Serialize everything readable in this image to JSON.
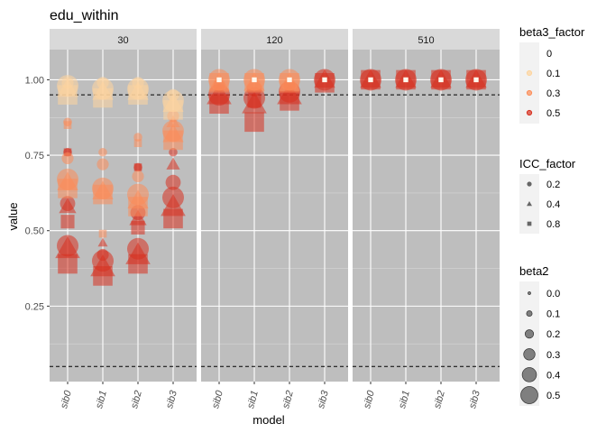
{
  "chart_data": {
    "type": "scatter",
    "title": "edu_within",
    "xlabel": "model",
    "ylabel": "value",
    "ylim": [
      0.0,
      1.1
    ],
    "y_ticks": [
      0.25,
      0.5,
      0.75,
      1.0
    ],
    "y_tick_labels": [
      "0.25",
      "0.50",
      "0.75",
      "1.00"
    ],
    "reference_lines": [
      0.05,
      0.95
    ],
    "panel_background": "#bebebe",
    "strip_background": "#d9d9d9",
    "grid": true,
    "categories": [
      "sib0",
      "sib1",
      "sib2",
      "sib3"
    ],
    "facets": [
      "30",
      "120",
      "510"
    ],
    "legend_placement": "right",
    "legends": {
      "color": {
        "title": "beta3_factor",
        "entries": [
          {
            "label": "0",
            "color": "#fff7ec"
          },
          {
            "label": "0.1",
            "color": "#fdd49e"
          },
          {
            "label": "0.3",
            "color": "#fc8d59"
          },
          {
            "label": "0.5",
            "color": "#d7301f"
          }
        ]
      },
      "shape": {
        "title": "ICC_factor",
        "entries": [
          {
            "label": "0.2",
            "shape": "circle"
          },
          {
            "label": "0.4",
            "shape": "triangle"
          },
          {
            "label": "0.8",
            "shape": "square"
          }
        ]
      },
      "size": {
        "title": "beta2",
        "entries": [
          {
            "label": "0.0",
            "size": 0.0
          },
          {
            "label": "0.1",
            "size": 0.1
          },
          {
            "label": "0.2",
            "size": 0.2
          },
          {
            "label": "0.3",
            "size": 0.3
          },
          {
            "label": "0.4",
            "size": 0.4
          },
          {
            "label": "0.5",
            "size": 0.5
          }
        ]
      }
    },
    "series": [
      {
        "facet": "30",
        "model": "sib0",
        "beta3_factor": "0.5",
        "points": [
          {
            "ICC": "0.2",
            "beta2": 0.5,
            "y": 0.45
          },
          {
            "ICC": "0.4",
            "beta2": 0.5,
            "y": 0.44
          },
          {
            "ICC": "0.8",
            "beta2": 0.5,
            "y": 0.39
          },
          {
            "ICC": "0.2",
            "beta2": 0.3,
            "y": 0.59
          },
          {
            "ICC": "0.4",
            "beta2": 0.3,
            "y": 0.58
          },
          {
            "ICC": "0.8",
            "beta2": 0.3,
            "y": 0.53
          },
          {
            "ICC": "0.2",
            "beta2": 0.1,
            "y": 0.76
          },
          {
            "ICC": "0.8",
            "beta2": 0.1,
            "y": 0.76
          }
        ]
      },
      {
        "facet": "30",
        "model": "sib0",
        "beta3_factor": "0.3",
        "points": [
          {
            "ICC": "0.2",
            "beta2": 0.5,
            "y": 0.67
          },
          {
            "ICC": "0.4",
            "beta2": 0.4,
            "y": 0.66
          },
          {
            "ICC": "0.8",
            "beta2": 0.5,
            "y": 0.64
          },
          {
            "ICC": "0.2",
            "beta2": 0.2,
            "y": 0.74
          },
          {
            "ICC": "0.2",
            "beta2": 0.1,
            "y": 0.86
          },
          {
            "ICC": "0.8",
            "beta2": 0.1,
            "y": 0.85
          }
        ]
      },
      {
        "facet": "30",
        "model": "sib0",
        "beta3_factor": "0.1",
        "points": [
          {
            "ICC": "0.2",
            "beta2": 0.5,
            "y": 0.98
          },
          {
            "ICC": "0.4",
            "beta2": 0.4,
            "y": 0.97
          },
          {
            "ICC": "0.8",
            "beta2": 0.5,
            "y": 0.95
          },
          {
            "ICC": "0.2",
            "beta2": 0.2,
            "y": 0.99
          }
        ]
      },
      {
        "facet": "30",
        "model": "sib1",
        "beta3_factor": "0.5",
        "points": [
          {
            "ICC": "0.2",
            "beta2": 0.5,
            "y": 0.4
          },
          {
            "ICC": "0.4",
            "beta2": 0.5,
            "y": 0.38
          },
          {
            "ICC": "0.8",
            "beta2": 0.5,
            "y": 0.35
          },
          {
            "ICC": "0.2",
            "beta2": 0.2,
            "y": 0.42
          },
          {
            "ICC": "0.4",
            "beta2": 0.1,
            "y": 0.46
          }
        ]
      },
      {
        "facet": "30",
        "model": "sib1",
        "beta3_factor": "0.3",
        "points": [
          {
            "ICC": "0.2",
            "beta2": 0.5,
            "y": 0.64
          },
          {
            "ICC": "0.4",
            "beta2": 0.4,
            "y": 0.63
          },
          {
            "ICC": "0.8",
            "beta2": 0.5,
            "y": 0.62
          },
          {
            "ICC": "0.2",
            "beta2": 0.2,
            "y": 0.72
          },
          {
            "ICC": "0.2",
            "beta2": 0.1,
            "y": 0.76
          },
          {
            "ICC": "0.8",
            "beta2": 0.1,
            "y": 0.49
          }
        ]
      },
      {
        "facet": "30",
        "model": "sib1",
        "beta3_factor": "0.1",
        "points": [
          {
            "ICC": "0.2",
            "beta2": 0.5,
            "y": 0.97
          },
          {
            "ICC": "0.4",
            "beta2": 0.4,
            "y": 0.96
          },
          {
            "ICC": "0.8",
            "beta2": 0.5,
            "y": 0.94
          },
          {
            "ICC": "0.2",
            "beta2": 0.2,
            "y": 0.99
          }
        ]
      },
      {
        "facet": "30",
        "model": "sib2",
        "beta3_factor": "0.5",
        "points": [
          {
            "ICC": "0.2",
            "beta2": 0.5,
            "y": 0.44
          },
          {
            "ICC": "0.4",
            "beta2": 0.5,
            "y": 0.42
          },
          {
            "ICC": "0.8",
            "beta2": 0.5,
            "y": 0.39
          },
          {
            "ICC": "0.2",
            "beta2": 0.3,
            "y": 0.56
          },
          {
            "ICC": "0.4",
            "beta2": 0.3,
            "y": 0.54
          },
          {
            "ICC": "0.8",
            "beta2": 0.3,
            "y": 0.51
          },
          {
            "ICC": "0.2",
            "beta2": 0.1,
            "y": 0.71
          },
          {
            "ICC": "0.8",
            "beta2": 0.1,
            "y": 0.71
          }
        ]
      },
      {
        "facet": "30",
        "model": "sib2",
        "beta3_factor": "0.3",
        "points": [
          {
            "ICC": "0.2",
            "beta2": 0.5,
            "y": 0.62
          },
          {
            "ICC": "0.4",
            "beta2": 0.4,
            "y": 0.6
          },
          {
            "ICC": "0.8",
            "beta2": 0.5,
            "y": 0.58
          },
          {
            "ICC": "0.2",
            "beta2": 0.2,
            "y": 0.68
          },
          {
            "ICC": "0.2",
            "beta2": 0.1,
            "y": 0.81
          },
          {
            "ICC": "0.8",
            "beta2": 0.1,
            "y": 0.79
          }
        ]
      },
      {
        "facet": "30",
        "model": "sib2",
        "beta3_factor": "0.1",
        "points": [
          {
            "ICC": "0.2",
            "beta2": 0.5,
            "y": 0.97
          },
          {
            "ICC": "0.4",
            "beta2": 0.4,
            "y": 0.96
          },
          {
            "ICC": "0.8",
            "beta2": 0.5,
            "y": 0.95
          },
          {
            "ICC": "0.2",
            "beta2": 0.2,
            "y": 0.99
          }
        ]
      },
      {
        "facet": "30",
        "model": "sib3",
        "beta3_factor": "0.5",
        "points": [
          {
            "ICC": "0.2",
            "beta2": 0.5,
            "y": 0.61
          },
          {
            "ICC": "0.4",
            "beta2": 0.5,
            "y": 0.58
          },
          {
            "ICC": "0.8",
            "beta2": 0.5,
            "y": 0.54
          },
          {
            "ICC": "0.2",
            "beta2": 0.3,
            "y": 0.66
          },
          {
            "ICC": "0.4",
            "beta2": 0.2,
            "y": 0.72
          },
          {
            "ICC": "0.2",
            "beta2": 0.1,
            "y": 0.76
          }
        ]
      },
      {
        "facet": "30",
        "model": "sib3",
        "beta3_factor": "0.3",
        "points": [
          {
            "ICC": "0.2",
            "beta2": 0.5,
            "y": 0.83
          },
          {
            "ICC": "0.4",
            "beta2": 0.4,
            "y": 0.82
          },
          {
            "ICC": "0.8",
            "beta2": 0.5,
            "y": 0.8
          },
          {
            "ICC": "0.2",
            "beta2": 0.2,
            "y": 0.88
          },
          {
            "ICC": "0.4",
            "beta2": 0.2,
            "y": 0.86
          }
        ]
      },
      {
        "facet": "30",
        "model": "sib3",
        "beta3_factor": "0.1",
        "points": [
          {
            "ICC": "0.2",
            "beta2": 0.5,
            "y": 0.93
          },
          {
            "ICC": "0.4",
            "beta2": 0.4,
            "y": 0.92
          },
          {
            "ICC": "0.8",
            "beta2": 0.5,
            "y": 0.9
          },
          {
            "ICC": "0.2",
            "beta2": 0.2,
            "y": 0.95
          }
        ]
      },
      {
        "facet": "120",
        "model": "sib0",
        "beta3_factor": "0.5",
        "points": [
          {
            "ICC": "0.2",
            "beta2": 0.5,
            "y": 0.95
          },
          {
            "ICC": "0.4",
            "beta2": 0.5,
            "y": 0.95
          },
          {
            "ICC": "0.8",
            "beta2": 0.5,
            "y": 0.92
          },
          {
            "ICC": "0.2",
            "beta2": 0.2,
            "y": 0.98
          }
        ]
      },
      {
        "facet": "120",
        "model": "sib0",
        "beta3_factor": "0.3",
        "points": [
          {
            "ICC": "0.2",
            "beta2": 0.5,
            "y": 1.0
          },
          {
            "ICC": "0.4",
            "beta2": 0.4,
            "y": 0.99
          },
          {
            "ICC": "0.8",
            "beta2": 0.5,
            "y": 0.99
          }
        ]
      },
      {
        "facet": "120",
        "model": "sib0",
        "beta3_factor": "0.0",
        "points": [
          {
            "ICC": "0.8",
            "beta2": 0.0,
            "y": 1.0
          }
        ]
      },
      {
        "facet": "120",
        "model": "sib1",
        "beta3_factor": "0.5",
        "points": [
          {
            "ICC": "0.2",
            "beta2": 0.5,
            "y": 0.94
          },
          {
            "ICC": "0.4",
            "beta2": 0.5,
            "y": 0.92
          },
          {
            "ICC": "0.8",
            "beta2": 0.5,
            "y": 0.86
          },
          {
            "ICC": "0.2",
            "beta2": 0.3,
            "y": 0.97
          },
          {
            "ICC": "0.8",
            "beta2": 0.3,
            "y": 0.93
          }
        ]
      },
      {
        "facet": "120",
        "model": "sib1",
        "beta3_factor": "0.3",
        "points": [
          {
            "ICC": "0.2",
            "beta2": 0.5,
            "y": 1.0
          },
          {
            "ICC": "0.4",
            "beta2": 0.4,
            "y": 0.99
          },
          {
            "ICC": "0.8",
            "beta2": 0.5,
            "y": 0.99
          }
        ]
      },
      {
        "facet": "120",
        "model": "sib1",
        "beta3_factor": "0.0",
        "points": [
          {
            "ICC": "0.8",
            "beta2": 0.0,
            "y": 1.0
          }
        ]
      },
      {
        "facet": "120",
        "model": "sib2",
        "beta3_factor": "0.5",
        "points": [
          {
            "ICC": "0.2",
            "beta2": 0.5,
            "y": 0.96
          },
          {
            "ICC": "0.4",
            "beta2": 0.5,
            "y": 0.95
          },
          {
            "ICC": "0.8",
            "beta2": 0.5,
            "y": 0.93
          },
          {
            "ICC": "0.2",
            "beta2": 0.2,
            "y": 0.98
          }
        ]
      },
      {
        "facet": "120",
        "model": "sib2",
        "beta3_factor": "0.3",
        "points": [
          {
            "ICC": "0.2",
            "beta2": 0.5,
            "y": 1.0
          },
          {
            "ICC": "0.4",
            "beta2": 0.4,
            "y": 0.99
          },
          {
            "ICC": "0.8",
            "beta2": 0.5,
            "y": 0.99
          }
        ]
      },
      {
        "facet": "120",
        "model": "sib2",
        "beta3_factor": "0.0",
        "points": [
          {
            "ICC": "0.8",
            "beta2": 0.0,
            "y": 1.0
          }
        ]
      },
      {
        "facet": "120",
        "model": "sib3",
        "beta3_factor": "0.5",
        "points": [
          {
            "ICC": "0.2",
            "beta2": 0.5,
            "y": 1.0
          },
          {
            "ICC": "0.4",
            "beta2": 0.4,
            "y": 1.0
          },
          {
            "ICC": "0.8",
            "beta2": 0.5,
            "y": 0.99
          }
        ]
      },
      {
        "facet": "120",
        "model": "sib3",
        "beta3_factor": "0.0",
        "points": [
          {
            "ICC": "0.8",
            "beta2": 0.0,
            "y": 1.0
          }
        ]
      },
      {
        "facet": "510",
        "model": "sib0",
        "beta3_factor": "0.5",
        "points": [
          {
            "ICC": "0.2",
            "beta2": 0.5,
            "y": 1.0
          },
          {
            "ICC": "0.4",
            "beta2": 0.4,
            "y": 1.0
          },
          {
            "ICC": "0.8",
            "beta2": 0.5,
            "y": 1.0
          }
        ]
      },
      {
        "facet": "510",
        "model": "sib0",
        "beta3_factor": "0.0",
        "points": [
          {
            "ICC": "0.8",
            "beta2": 0.0,
            "y": 1.0
          }
        ]
      },
      {
        "facet": "510",
        "model": "sib1",
        "beta3_factor": "0.5",
        "points": [
          {
            "ICC": "0.2",
            "beta2": 0.5,
            "y": 1.0
          },
          {
            "ICC": "0.4",
            "beta2": 0.4,
            "y": 1.0
          },
          {
            "ICC": "0.8",
            "beta2": 0.5,
            "y": 1.0
          }
        ]
      },
      {
        "facet": "510",
        "model": "sib1",
        "beta3_factor": "0.0",
        "points": [
          {
            "ICC": "0.8",
            "beta2": 0.0,
            "y": 1.0
          }
        ]
      },
      {
        "facet": "510",
        "model": "sib2",
        "beta3_factor": "0.5",
        "points": [
          {
            "ICC": "0.2",
            "beta2": 0.5,
            "y": 1.0
          },
          {
            "ICC": "0.4",
            "beta2": 0.4,
            "y": 1.0
          },
          {
            "ICC": "0.8",
            "beta2": 0.5,
            "y": 1.0
          }
        ]
      },
      {
        "facet": "510",
        "model": "sib2",
        "beta3_factor": "0.0",
        "points": [
          {
            "ICC": "0.8",
            "beta2": 0.0,
            "y": 1.0
          }
        ]
      },
      {
        "facet": "510",
        "model": "sib3",
        "beta3_factor": "0.5",
        "points": [
          {
            "ICC": "0.2",
            "beta2": 0.5,
            "y": 1.0
          },
          {
            "ICC": "0.4",
            "beta2": 0.4,
            "y": 1.0
          },
          {
            "ICC": "0.8",
            "beta2": 0.5,
            "y": 1.0
          }
        ]
      },
      {
        "facet": "510",
        "model": "sib3",
        "beta3_factor": "0.0",
        "points": [
          {
            "ICC": "0.8",
            "beta2": 0.0,
            "y": 1.0
          }
        ]
      }
    ]
  }
}
